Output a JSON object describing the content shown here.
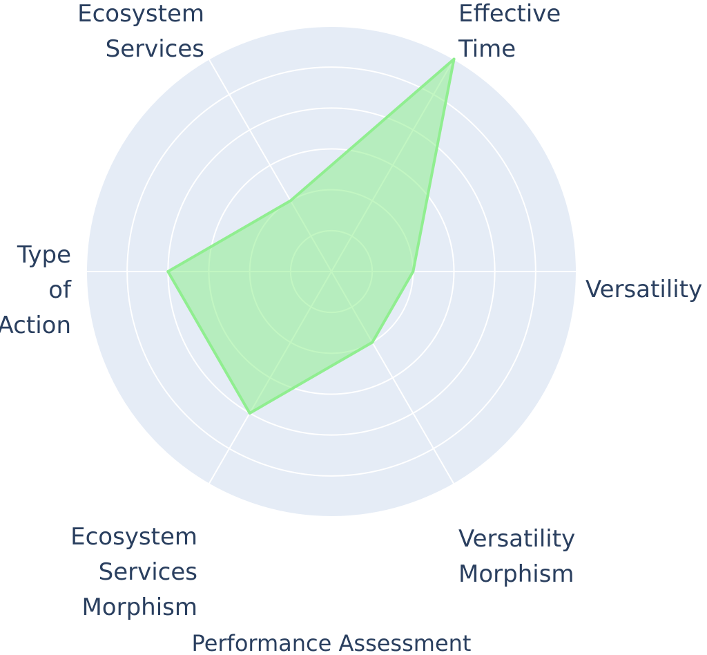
{
  "chart_data": {
    "type": "radar",
    "title": "Performance Assessment",
    "axes": [
      {
        "name": "Versatility",
        "lines": [
          "Versatility"
        ]
      },
      {
        "name": "Effective Time",
        "lines": [
          "Effective",
          "Time"
        ]
      },
      {
        "name": "Ecosystem Services",
        "lines": [
          "Ecosystem",
          "Services"
        ]
      },
      {
        "name": "Type of Action",
        "lines": [
          "Type",
          "of",
          "Action"
        ]
      },
      {
        "name": "Ecosystem Services Morphism",
        "lines": [
          "Ecosystem",
          "Services",
          "Morphism"
        ]
      },
      {
        "name": "Versatility Morphism",
        "lines": [
          "Versatility",
          "Morphism"
        ]
      }
    ],
    "series": [
      {
        "values": [
          2,
          6,
          2,
          4,
          4,
          2
        ],
        "fill_color": "#90ee90",
        "line_color": "#90ee90",
        "fill_opacity": 0.55
      }
    ],
    "radial_range": [
      0,
      6
    ],
    "grid": true,
    "tick_labels_visible": false,
    "colors": {
      "polar_background": "#e5ecf6",
      "gridline": "#ffffff",
      "label_text": "#2a3f5f"
    }
  }
}
